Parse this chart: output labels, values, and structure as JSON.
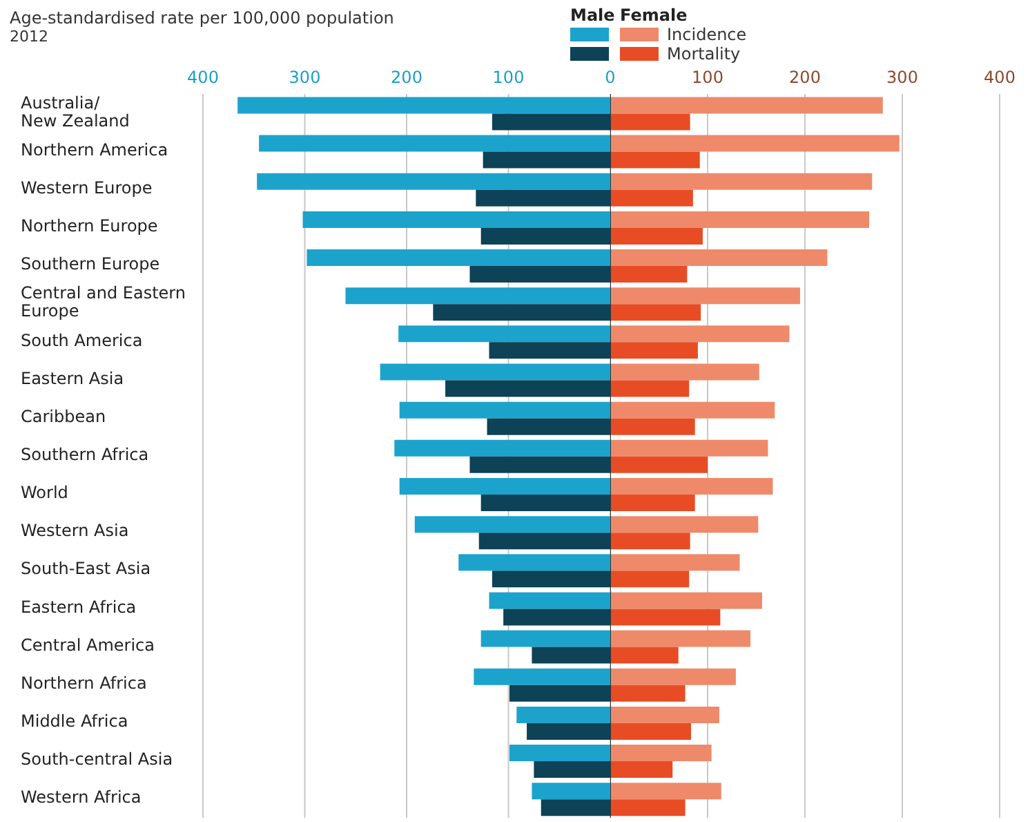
{
  "chart_data": [
    {
      "type": "bar",
      "orientation": "horizontal",
      "title": "Age-standardised rate per 100,000 population",
      "subtitle": "2012",
      "legend_title": "Male",
      "grid": "x",
      "categories": [
        "Australia/\nNew Zealand",
        "Northern America",
        "Western Europe",
        "Northern Europe",
        "Southern Europe",
        "Central and Eastern\nEurope",
        "South America",
        "Eastern Asia",
        "Caribbean",
        "Southern Africa",
        "World",
        "Western Asia",
        "South-East Asia",
        "Eastern Africa",
        "Central America",
        "Northern Africa",
        "Middle Africa",
        "South-central Asia",
        "Western Africa"
      ],
      "xlim": [
        400,
        0
      ],
      "xticks": [
        400,
        300,
        200,
        100,
        0
      ],
      "series": [
        {
          "color": "#1ba3cc",
          "values": [
            366,
            345,
            347,
            302,
            298,
            260,
            208,
            226,
            207,
            212,
            207,
            192,
            149,
            119,
            127,
            134,
            92,
            99,
            77
          ]
        },
        {
          "color": "#0d4257",
          "values": [
            116,
            125,
            132,
            127,
            138,
            174,
            119,
            162,
            121,
            138,
            127,
            129,
            116,
            105,
            77,
            99,
            82,
            75,
            68
          ]
        }
      ]
    },
    {
      "type": "bar",
      "orientation": "horizontal",
      "legend_title": "Female",
      "legend": "top",
      "grid": "x",
      "tick_labels": "x",
      "categories": [
        null,
        null,
        null,
        null,
        null,
        null,
        null,
        null,
        null,
        null,
        null,
        null,
        null,
        null,
        null,
        null,
        null,
        null,
        null
      ],
      "xlim": [
        0,
        400
      ],
      "xticks": [
        {
          "value": 0,
          "label": null
        },
        100,
        200,
        300,
        400
      ],
      "series": [
        {
          "name": "Incidence",
          "color": "#ee8a6a",
          "values": [
            280,
            297,
            269,
            266,
            223,
            195,
            184,
            153,
            169,
            162,
            167,
            152,
            133,
            156,
            144,
            129,
            112,
            104,
            114
          ]
        },
        {
          "name": "Mortality",
          "color": "#e84c24",
          "values": [
            82,
            92,
            85,
            95,
            79,
            93,
            90,
            81,
            87,
            100,
            87,
            82,
            81,
            113,
            70,
            77,
            83,
            64,
            77
          ]
        }
      ]
    }
  ]
}
